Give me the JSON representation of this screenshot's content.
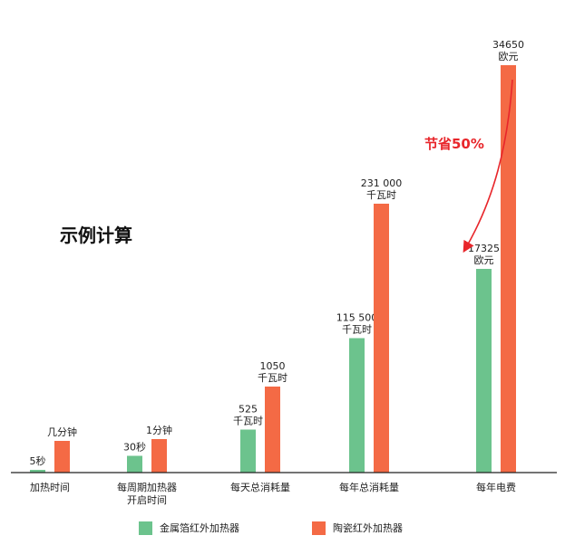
{
  "heading": "示例计算",
  "savings_label": "节省50%",
  "colors": {
    "metal": "#6cc38d",
    "ceramic": "#f46a45",
    "arrow": "#e8262b",
    "axis": "#222222"
  },
  "chart_data": {
    "type": "bar",
    "categories": [
      [
        "加热时间"
      ],
      [
        "每周期加热器",
        "开启时间"
      ],
      [
        "每天总消耗量"
      ],
      [
        "每年总消耗量"
      ],
      [
        "每年电费"
      ]
    ],
    "series": [
      {
        "name": "金属箔红外加热器",
        "values": [
          5,
          30,
          525,
          115500,
          17325
        ],
        "labels": [
          [
            "5秒"
          ],
          [
            "30秒"
          ],
          [
            "525",
            "千瓦时"
          ],
          [
            "115 500",
            "千瓦时"
          ],
          [
            "17325",
            "欧元"
          ]
        ]
      },
      {
        "name": "陶瓷红外加热器",
        "values": [
          180,
          60,
          1050,
          231000,
          34650
        ],
        "labels": [
          [
            "几分钟"
          ],
          [
            "1分钟"
          ],
          [
            "1050",
            "千瓦时"
          ],
          [
            "231 000",
            "千瓦时"
          ],
          [
            "34650",
            "欧元"
          ]
        ]
      }
    ],
    "grid": false,
    "legend": "bottom"
  }
}
